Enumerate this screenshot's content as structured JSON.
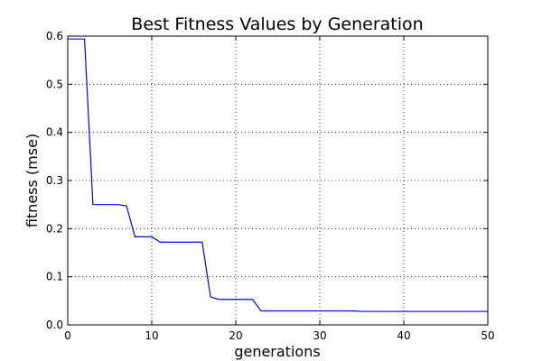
{
  "chart_data": {
    "type": "line",
    "title": "Best Fitness Values by Generation",
    "xlabel": "generations",
    "ylabel": "fitness (mse)",
    "xlim": [
      0,
      50
    ],
    "ylim": [
      0.0,
      0.6
    ],
    "x_ticks": [
      "0",
      "10",
      "20",
      "30",
      "40",
      "50"
    ],
    "y_ticks": [
      "0.0",
      "0.1",
      "0.2",
      "0.3",
      "0.4",
      "0.5",
      "0.6"
    ],
    "grid": true,
    "grid_style": "dotted",
    "line_color": "#0000ff",
    "series": [
      {
        "x": [
          0,
          1,
          2,
          3,
          4,
          5,
          6,
          7,
          8,
          9,
          10,
          11,
          12,
          13,
          14,
          15,
          16,
          17,
          18,
          19,
          20,
          21,
          22,
          23,
          24,
          25,
          26,
          27,
          28,
          29,
          30,
          31,
          32,
          33,
          34,
          35,
          36,
          37,
          38,
          39,
          40,
          41,
          42,
          43,
          44,
          45,
          46,
          47,
          48,
          49,
          50
        ],
        "values": [
          0.594,
          0.594,
          0.594,
          0.25,
          0.25,
          0.25,
          0.25,
          0.247,
          0.183,
          0.183,
          0.183,
          0.172,
          0.172,
          0.172,
          0.172,
          0.172,
          0.172,
          0.058,
          0.053,
          0.053,
          0.053,
          0.053,
          0.053,
          0.029,
          0.029,
          0.029,
          0.029,
          0.029,
          0.029,
          0.029,
          0.029,
          0.029,
          0.029,
          0.029,
          0.029,
          0.028,
          0.028,
          0.028,
          0.028,
          0.028,
          0.028,
          0.028,
          0.028,
          0.028,
          0.028,
          0.028,
          0.028,
          0.028,
          0.028,
          0.028,
          0.028
        ]
      }
    ]
  }
}
